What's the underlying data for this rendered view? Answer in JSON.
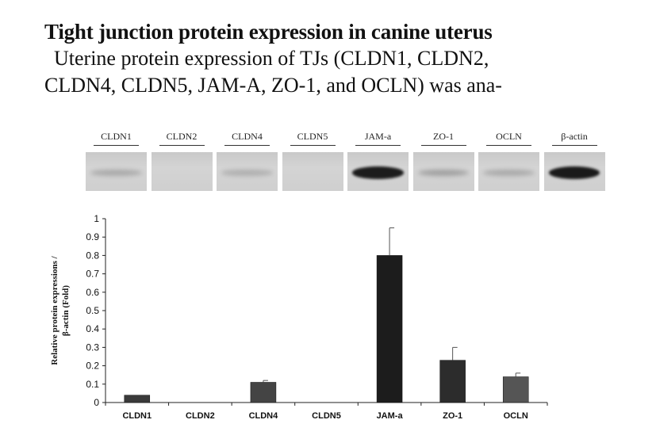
{
  "heading": "Tight junction protein expression in canine uterus",
  "paragraph": {
    "line1": "Uterine protein expression of TJs (CLDN1, CLDN2,",
    "line2": "CLDN4, CLDN5, JAM-A, ZO-1, and OCLN) was ana-"
  },
  "blot": {
    "lanes": [
      {
        "label": "CLDN1",
        "band": 0.15
      },
      {
        "label": "CLDN2",
        "band": 0.0
      },
      {
        "label": "CLDN4",
        "band": 0.12
      },
      {
        "label": "CLDN5",
        "band": 0.0
      },
      {
        "label": "JAM-a",
        "band": 0.95
      },
      {
        "label": "ZO-1",
        "band": 0.2
      },
      {
        "label": "OCLN",
        "band": 0.15
      },
      {
        "label": "β-actin",
        "band": 1.0
      }
    ],
    "band_color": "#1a1a1a"
  },
  "chart_data": {
    "type": "bar",
    "categories": [
      "CLDN1",
      "CLDN2",
      "CLDN4",
      "CLDN5",
      "JAM-a",
      "ZO-1",
      "OCLN"
    ],
    "values": [
      0.04,
      0,
      0.11,
      0,
      0.8,
      0.23,
      0.14
    ],
    "errors": [
      0,
      0,
      0.01,
      0,
      0.15,
      0.07,
      0.02
    ],
    "colors": [
      "#3a3a3a",
      "#3a3a3a",
      "#444444",
      "#3a3a3a",
      "#1c1c1c",
      "#2c2c2c",
      "#555555"
    ],
    "ylim": [
      0,
      1
    ],
    "yticks": [
      "0",
      "0.1",
      "0.2",
      "0.3",
      "0.4",
      "0.5",
      "0.6",
      "0.7",
      "0.8",
      "0.9",
      "1"
    ],
    "ylabel_line1": "Relative protein expressions /",
    "ylabel_line2": "β-actin  (Fold)",
    "grid": false
  }
}
